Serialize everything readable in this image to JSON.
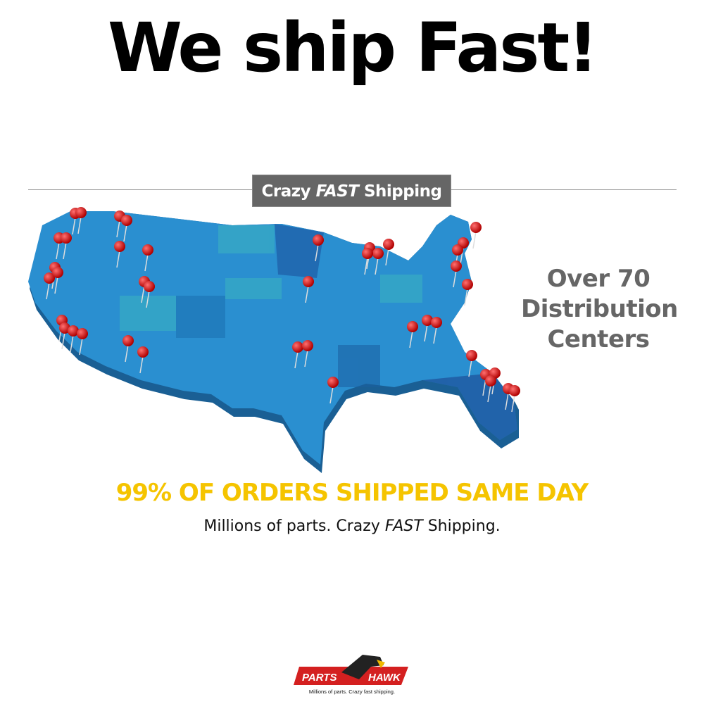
{
  "headline": "We ship Fast!",
  "banner": {
    "pre": "Crazy",
    "emph": "FAST",
    "post": "Shipping"
  },
  "callout": {
    "line1": "Over 70",
    "line2": "Distribution",
    "line3": "Centers"
  },
  "orders_text": "99% OF ORDERS SHIPPED SAME DAY",
  "tagline": {
    "pre": "Millions of parts. Crazy",
    "emph": "FAST",
    "post": "Shipping."
  },
  "logo": {
    "left": "PARTS",
    "right": "HAWK",
    "slogan": "Millions of parts. Crazy fast shipping."
  },
  "colors": {
    "map_blue": "#2a8fd0",
    "pin_red": "#d01010",
    "orders_yellow": "#f5c400",
    "banner_gray": "#666666",
    "logo_red": "#d42020"
  }
}
